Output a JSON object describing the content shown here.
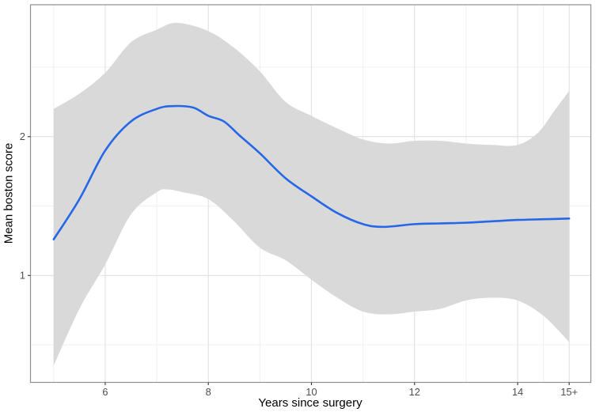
{
  "chart_data": {
    "type": "line",
    "title": "",
    "xlabel": "Years since surgery",
    "ylabel": "Mean boston score",
    "grid": true,
    "legend": false,
    "x_domain": [
      4.55,
      15.42
    ],
    "y_domain": [
      0.23,
      2.95
    ],
    "x_ticks": [
      {
        "value": 6,
        "label": "6"
      },
      {
        "value": 8,
        "label": "8"
      },
      {
        "value": 10,
        "label": "10"
      },
      {
        "value": 12,
        "label": "12"
      },
      {
        "value": 14,
        "label": "14"
      },
      {
        "value": 15,
        "label": "15+"
      }
    ],
    "y_ticks": [
      {
        "value": 1,
        "label": "1"
      },
      {
        "value": 2,
        "label": "2"
      }
    ],
    "x_major_gridlines": [
      6,
      8,
      10,
      12,
      14,
      15
    ],
    "x_minor_gridlines": [
      5,
      7,
      9,
      11,
      13,
      14.5
    ],
    "y_major_gridlines": [
      1,
      2
    ],
    "y_minor_gridlines": [
      0.5,
      1.5,
      2.5
    ],
    "series": [
      {
        "name": "smoothed-mean-boston-score",
        "type": "smooth-line",
        "color": "#2667e8",
        "width": 2.6,
        "points": [
          [
            5.0,
            1.26
          ],
          [
            5.5,
            1.55
          ],
          [
            6.0,
            1.9
          ],
          [
            6.5,
            2.11
          ],
          [
            7.0,
            2.2
          ],
          [
            7.3,
            2.22
          ],
          [
            7.7,
            2.21
          ],
          [
            8.0,
            2.15
          ],
          [
            8.3,
            2.11
          ],
          [
            8.6,
            2.01
          ],
          [
            9.0,
            1.88
          ],
          [
            9.5,
            1.7
          ],
          [
            10.0,
            1.57
          ],
          [
            10.5,
            1.45
          ],
          [
            11.0,
            1.37
          ],
          [
            11.4,
            1.35
          ],
          [
            12.0,
            1.37
          ],
          [
            12.5,
            1.375
          ],
          [
            13.0,
            1.38
          ],
          [
            13.5,
            1.39
          ],
          [
            14.0,
            1.4
          ],
          [
            14.5,
            1.405
          ],
          [
            15.0,
            1.41
          ]
        ]
      }
    ],
    "band": {
      "name": "confidence-interval",
      "color": "#d9d9d9",
      "upper": [
        [
          5.0,
          2.2
        ],
        [
          5.5,
          2.31
        ],
        [
          6.0,
          2.46
        ],
        [
          6.5,
          2.68
        ],
        [
          7.0,
          2.77
        ],
        [
          7.4,
          2.82
        ],
        [
          8.0,
          2.76
        ],
        [
          8.5,
          2.64
        ],
        [
          9.0,
          2.47
        ],
        [
          9.5,
          2.25
        ],
        [
          10.0,
          2.15
        ],
        [
          10.5,
          2.06
        ],
        [
          11.0,
          1.98
        ],
        [
          11.5,
          1.95
        ],
        [
          12.0,
          1.97
        ],
        [
          12.5,
          1.97
        ],
        [
          13.0,
          1.95
        ],
        [
          13.5,
          1.94
        ],
        [
          14.0,
          1.94
        ],
        [
          14.4,
          2.03
        ],
        [
          14.7,
          2.18
        ],
        [
          15.0,
          2.33
        ]
      ],
      "lower": [
        [
          5.0,
          0.35
        ],
        [
          5.5,
          0.76
        ],
        [
          6.0,
          1.08
        ],
        [
          6.5,
          1.44
        ],
        [
          7.0,
          1.6
        ],
        [
          7.2,
          1.62
        ],
        [
          7.5,
          1.6
        ],
        [
          8.0,
          1.55
        ],
        [
          8.5,
          1.39
        ],
        [
          9.0,
          1.2
        ],
        [
          9.5,
          1.11
        ],
        [
          10.0,
          0.97
        ],
        [
          10.5,
          0.84
        ],
        [
          11.0,
          0.74
        ],
        [
          11.5,
          0.72
        ],
        [
          12.0,
          0.74
        ],
        [
          12.5,
          0.76
        ],
        [
          13.0,
          0.82
        ],
        [
          13.5,
          0.84
        ],
        [
          14.0,
          0.82
        ],
        [
          14.5,
          0.71
        ],
        [
          15.0,
          0.52
        ]
      ]
    },
    "colors": {
      "panel_background": "#ffffff",
      "panel_border": "#8f8f8f",
      "grid_major": "#e3e3e3",
      "grid_minor": "#f0f0f0",
      "tick_mark": "#333333",
      "tick_label": "#4d4d4d",
      "axis_title": "#000000"
    }
  }
}
